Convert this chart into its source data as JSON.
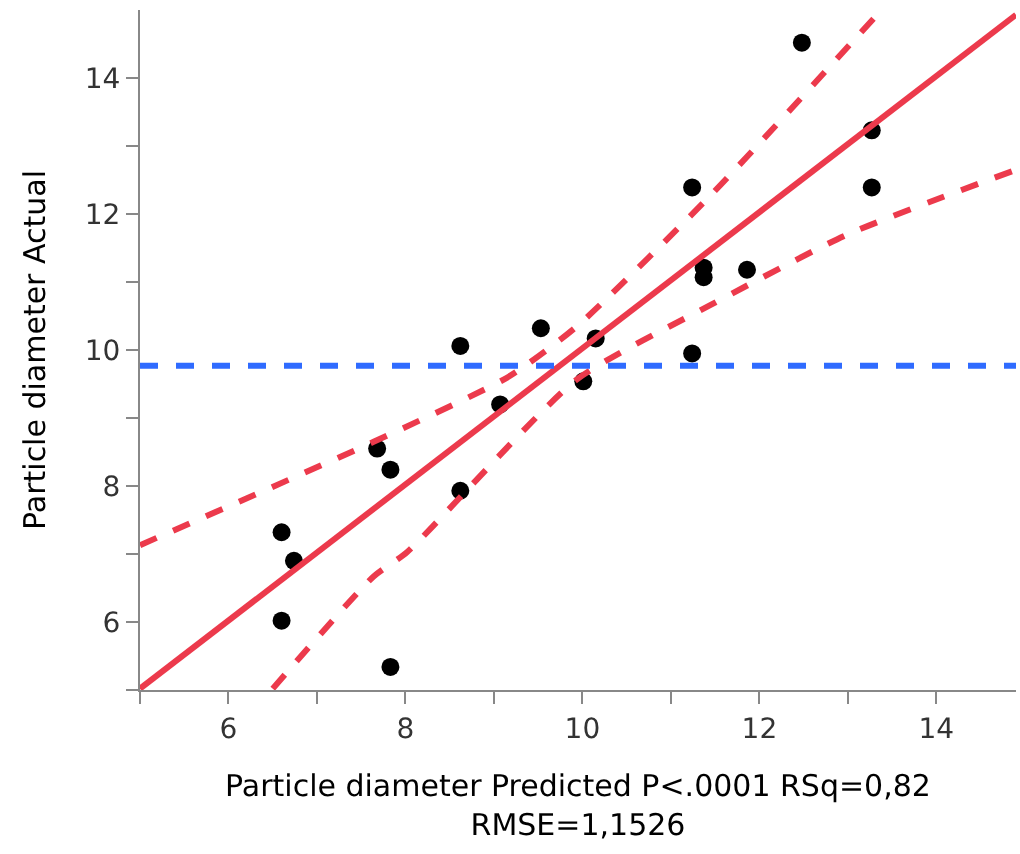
{
  "chart_data": {
    "type": "scatter",
    "xlabel": "Particle diameter Predicted P<.0001 RSq=0,82\nRMSE=1,1526",
    "ylabel": "Particle diameter Actual",
    "xlim": [
      5,
      14.9
    ],
    "ylim": [
      5,
      15
    ],
    "xticks": [
      {
        "value": 5,
        "label": null
      },
      6,
      {
        "value": 7,
        "label": null
      },
      8,
      {
        "value": 9,
        "label": null
      },
      10,
      {
        "value": 11,
        "label": null
      },
      12,
      {
        "value": 13,
        "label": null
      },
      14
    ],
    "yticks": [
      {
        "value": 5,
        "label": null
      },
      6,
      {
        "value": 7,
        "label": null
      },
      8,
      {
        "value": 9,
        "label": null
      },
      10,
      {
        "value": 11,
        "label": null
      },
      12,
      {
        "value": 13,
        "label": null
      },
      14
    ],
    "legend": false,
    "series": [
      {
        "color": "#000000",
        "marker": "circle",
        "x": [
          6.6,
          6.74,
          6.6,
          7.68,
          7.83,
          7.83,
          8.62,
          8.62,
          9.07,
          9.53,
          10.01,
          10.15,
          11.24,
          11.24,
          11.37,
          11.37,
          11.86,
          12.48,
          13.27,
          13.27
        ],
        "values": [
          7.32,
          6.9,
          6.02,
          8.55,
          8.24,
          5.34,
          10.06,
          7.93,
          9.2,
          10.32,
          9.54,
          10.17,
          12.39,
          9.95,
          11.21,
          11.07,
          11.18,
          14.52,
          13.23,
          12.39
        ]
      },
      {
        "type": "line",
        "color": "#ec3a4c",
        "line_style": "solid",
        "marker": "none",
        "x": [
          5,
          14.9
        ],
        "values": [
          5.02,
          14.93
        ]
      },
      {
        "type": "line",
        "color": "#ec3a4c",
        "line_style": "dashed",
        "marker": "none",
        "x": [
          5,
          7.64,
          9.17,
          9.93,
          11.46,
          13.33
        ],
        "values": [
          7.13,
          8.65,
          9.61,
          10.34,
          12.29,
          14.93
        ]
      },
      {
        "type": "line",
        "color": "#ec3a4c",
        "line_style": "dashed",
        "marker": "none",
        "x": [
          6.5,
          7.64,
          8.02,
          9.93,
          11.46,
          12.98,
          14.9
        ],
        "values": [
          5.02,
          6.67,
          7.03,
          9.56,
          10.67,
          11.69,
          12.65
        ]
      }
    ],
    "ref_lines": [
      {
        "axis": "y",
        "value": 9.77,
        "label": null,
        "color": "#2f6bff",
        "line_style": "dashed"
      }
    ]
  }
}
